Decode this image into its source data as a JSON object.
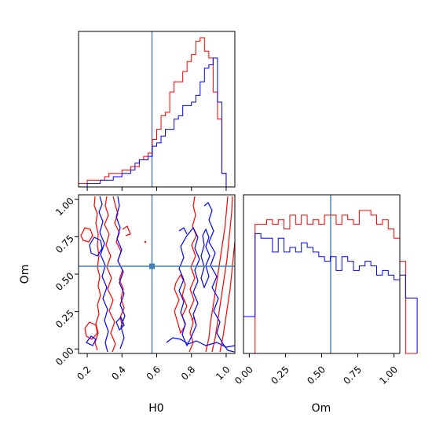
{
  "chart_data": [
    {
      "type": "histogram",
      "panel": "H0 marginal (top-left)",
      "xlim": [
        0.15,
        1.05
      ],
      "bins_start": 0.15,
      "bin_width": 0.025,
      "truth_x": 0.58,
      "series": [
        {
          "color": "#ff0000",
          "counts": [
            1,
            1,
            2,
            2,
            2,
            2,
            3,
            4,
            4,
            4,
            5,
            5,
            6,
            6,
            8,
            9,
            10,
            14,
            17,
            21,
            22,
            28,
            31,
            31,
            34,
            37,
            39,
            43,
            44,
            40,
            38,
            28,
            20,
            4,
            0,
            0
          ]
        },
        {
          "color": "#0000ff",
          "counts": [
            0,
            0,
            1,
            1,
            1,
            2,
            2,
            2,
            3,
            3,
            4,
            4,
            5,
            7,
            8,
            8,
            9,
            12,
            13,
            15,
            17,
            17,
            20,
            21,
            24,
            24,
            25,
            27,
            31,
            35,
            36,
            38,
            25,
            4,
            0,
            0
          ]
        }
      ]
    },
    {
      "type": "contour",
      "panel": "H0 vs Om (bottom-left)",
      "xlabel": "H0",
      "ylabel": "Om",
      "xlim": [
        0.15,
        1.05
      ],
      "ylim": [
        -0.03,
        1.03
      ],
      "xticks": [
        "0.2",
        "0.4",
        "0.6",
        "0.8",
        "1.0"
      ],
      "yticks": [
        "0.00",
        "0.25",
        "0.50",
        "0.75",
        "1.00"
      ],
      "truth": {
        "x": 0.58,
        "y": 0.56
      },
      "series": [
        {
          "color": "#ff0000",
          "level": "outer"
        },
        {
          "color": "#0000ff",
          "level": "outer"
        }
      ]
    },
    {
      "type": "histogram",
      "panel": "Om marginal (bottom-right)",
      "xlabel": "Om",
      "xlim": [
        -0.04,
        1.04
      ],
      "xticks": [
        "0.00",
        "0.25",
        "0.50",
        "0.75",
        "1.00"
      ],
      "bins_start": -0.04,
      "bin_width": 0.04,
      "truth_x": 0.56,
      "series": [
        {
          "color": "#ff0000",
          "counts": [
            0,
            0,
            28,
            28,
            29,
            28,
            29,
            27,
            30,
            28,
            30,
            28,
            29,
            28,
            30,
            30,
            28,
            30,
            29,
            28,
            31,
            31,
            30,
            28,
            29,
            27,
            25,
            20,
            0,
            0
          ]
        },
        {
          "color": "#0000ff",
          "counts": [
            8,
            8,
            26,
            25,
            25,
            22,
            25,
            22,
            23,
            22,
            24,
            23,
            22,
            21,
            20,
            21,
            18,
            21,
            20,
            18,
            19,
            20,
            19,
            17,
            18,
            17,
            16,
            17,
            12,
            12
          ]
        }
      ]
    }
  ]
}
